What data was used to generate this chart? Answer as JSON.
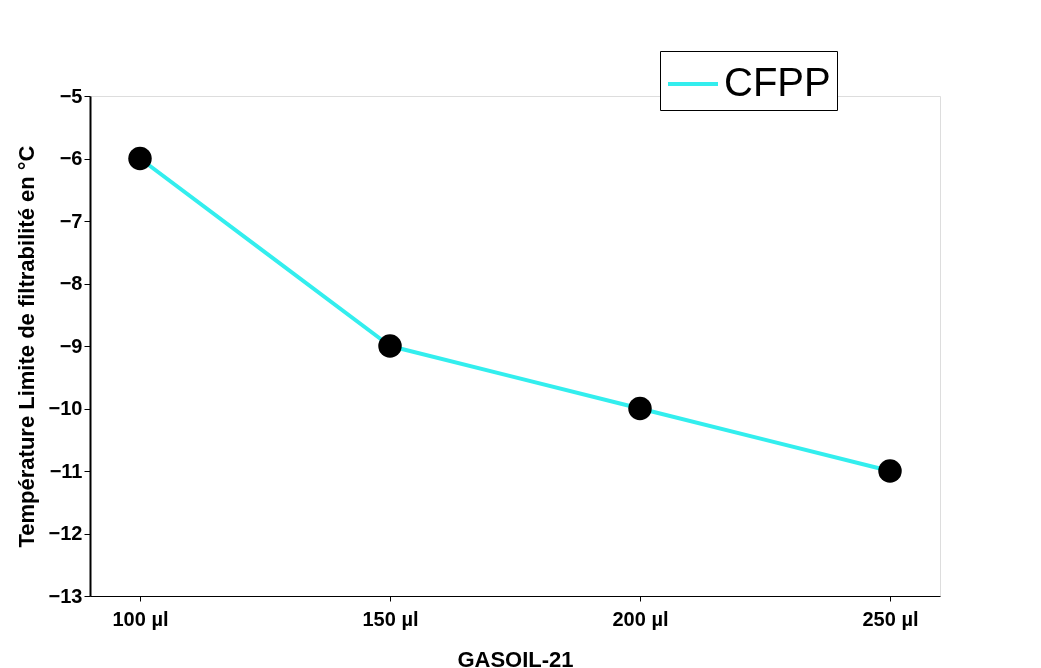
{
  "chart_data": {
    "type": "line",
    "xlabel": "GASOIL-21",
    "ylabel": "Température Limite de filtrabilité en °C",
    "categories": [
      "100 µl",
      "150 µl",
      "200 µl",
      "250 µl"
    ],
    "series": [
      {
        "name": "CFPP",
        "color": "#33eeee",
        "values": [
          -6,
          -9,
          -10,
          -11
        ]
      }
    ],
    "ylim": [
      -13,
      -5
    ],
    "yticks": [
      -13,
      -12,
      -11,
      -10,
      -9,
      -8,
      -7,
      -6,
      -5
    ],
    "marker": "circle",
    "legend": "top right",
    "grid": false,
    "line_style": "solid"
  }
}
